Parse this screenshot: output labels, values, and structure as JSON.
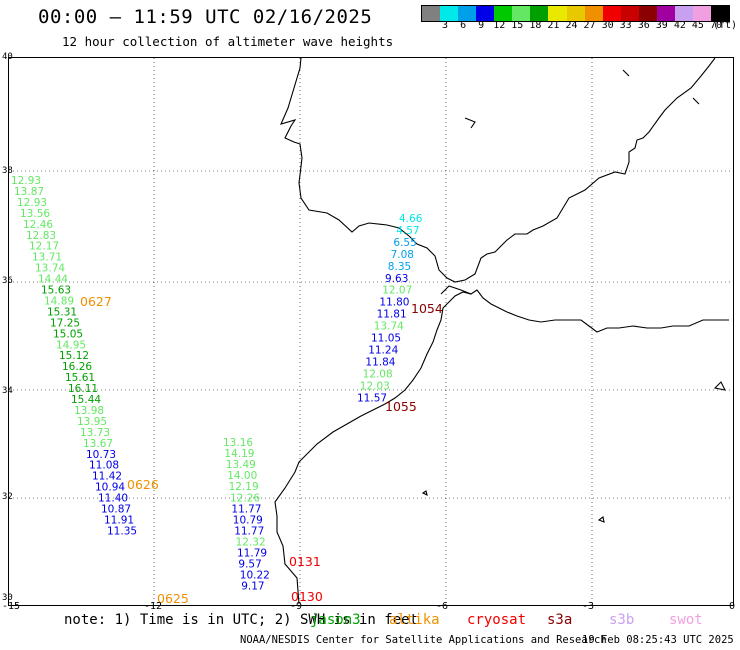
{
  "header": {
    "title": "00:00 — 11:59 UTC 02/16/2025",
    "subtitle": "12 hour collection of altimeter wave heights"
  },
  "legend": {
    "unit": "(ft)",
    "colors": [
      "#808080",
      "#00e8e8",
      "#00a0e8",
      "#0000e8",
      "#00c800",
      "#64e864",
      "#00a000",
      "#e8e800",
      "#e8c800",
      "#f09000",
      "#f00000",
      "#c80000",
      "#8b0000",
      "#a000a0",
      "#c8a0f0",
      "#f0a0e0",
      "#000000"
    ],
    "labels": [
      "3",
      "6",
      "9",
      "12",
      "15",
      "18",
      "21",
      "24",
      "27",
      "30",
      "33",
      "36",
      "39",
      "42",
      "45",
      "70"
    ]
  },
  "axes": {
    "lat_labels": [
      "40",
      "38",
      "36",
      "34",
      "32",
      "30"
    ],
    "lon_labels": [
      "-15",
      "-12",
      "-9",
      "-6",
      "-3",
      "0"
    ]
  },
  "passes": [
    {
      "label": "0627",
      "color": "#f09000"
    },
    {
      "label": "0626",
      "color": "#f09000"
    },
    {
      "label": "0625",
      "color": "#f09000"
    },
    {
      "label": "0131",
      "color": "#f00000"
    },
    {
      "label": "0130",
      "color": "#f00000"
    },
    {
      "label": "1054",
      "color": "#8b0000"
    },
    {
      "label": "1055",
      "color": "#8b0000"
    }
  ],
  "track_west": {
    "values": [
      "12.93",
      "13.87",
      "12.93",
      "13.56",
      "12.46",
      "12.83",
      "12.17",
      "13.71",
      "13.74",
      "14.44",
      "15.63",
      "14.89",
      "15.31",
      "17.25",
      "15.05",
      "14.95",
      "15.12",
      "16.26",
      "15.61",
      "16.11",
      "15.44",
      "13.98",
      "13.95",
      "13.73",
      "13.67",
      "10.73",
      "11.08",
      "11.42",
      "10.94",
      "11.40",
      "10.87",
      "11.91",
      "11.35"
    ],
    "colors": [
      "#64e864",
      "#64e864",
      "#64e864",
      "#64e864",
      "#64e864",
      "#64e864",
      "#64e864",
      "#64e864",
      "#64e864",
      "#64e864",
      "#00a000",
      "#64e864",
      "#00a000",
      "#00a000",
      "#00a000",
      "#64e864",
      "#00a000",
      "#00a000",
      "#00a000",
      "#00a000",
      "#00a000",
      "#64e864",
      "#64e864",
      "#64e864",
      "#64e864",
      "#0000e8",
      "#0000e8",
      "#0000e8",
      "#0000e8",
      "#0000e8",
      "#0000e8",
      "#0000e8",
      "#0000e8"
    ]
  },
  "track_middle": {
    "values": [
      "13.16",
      "14.19",
      "13.49",
      "14.00",
      "12.19",
      "12.26",
      "11.77",
      "10.79",
      "11.77",
      "12.32",
      "11.79",
      "9.57",
      "10.22",
      "9.17"
    ],
    "colors": [
      "#64e864",
      "#64e864",
      "#64e864",
      "#64e864",
      "#64e864",
      "#64e864",
      "#0000e8",
      "#0000e8",
      "#0000e8",
      "#64e864",
      "#0000e8",
      "#0000e8",
      "#0000e8",
      "#0000e8"
    ]
  },
  "track_east": {
    "values": [
      "4.66",
      "4.57",
      "6.55",
      "7.08",
      "8.35",
      "9.63",
      "12.07",
      "11.80",
      "11.81",
      "13.74",
      "11.05",
      "11.24",
      "11.84",
      "12.08",
      "12.03",
      "11.57"
    ],
    "colors": [
      "#00e8e8",
      "#00e8e8",
      "#00a0e8",
      "#00a0e8",
      "#00a0e8",
      "#0000e8",
      "#64e864",
      "#0000e8",
      "#0000e8",
      "#64e864",
      "#0000e8",
      "#0000e8",
      "#0000e8",
      "#64e864",
      "#64e864",
      "#0000e8"
    ]
  },
  "footer": {
    "note": "note: 1) Time is in UTC; 2) SWH is in feet",
    "satellites": [
      {
        "name": "jason3",
        "color": "#00a000"
      },
      {
        "name": "altika",
        "color": "#f09000"
      },
      {
        "name": "cryosat",
        "color": "#f00000"
      },
      {
        "name": "s3a",
        "color": "#8b0000"
      },
      {
        "name": "s3b",
        "color": "#c8a0f0"
      },
      {
        "name": "swot",
        "color": "#f0a0e0"
      }
    ],
    "credit": "NOAA/NESDIS Center for Satellite Applications and Research",
    "timestamp": "19 Feb 08:25:43 UTC 2025"
  }
}
